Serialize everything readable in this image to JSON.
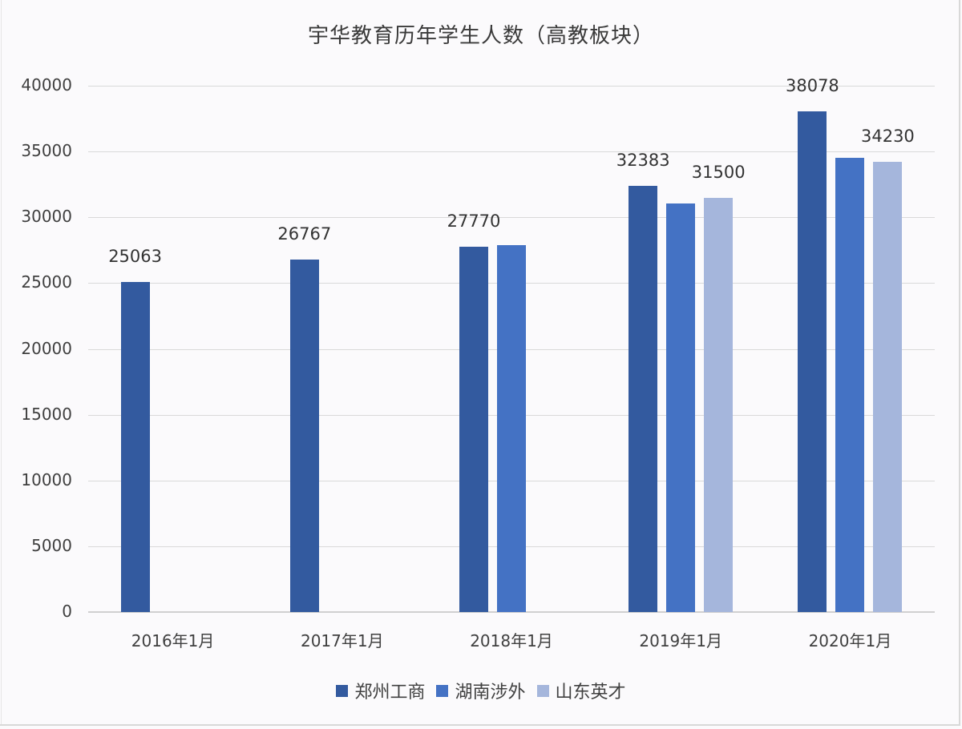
{
  "chart_data": {
    "type": "bar",
    "title": "宇华教育历年学生人数（高教板块）",
    "xlabel": "",
    "ylabel": "",
    "ylim": [
      0,
      40000
    ],
    "yticks": [
      0,
      5000,
      10000,
      15000,
      20000,
      25000,
      30000,
      35000,
      40000
    ],
    "grid": true,
    "legend_position": "bottom",
    "categories": [
      "2016年1月",
      "2017年1月",
      "2018年1月",
      "2019年1月",
      "2020年1月"
    ],
    "series": [
      {
        "name": "郑州工商",
        "color": "#335a9f",
        "values": [
          25063,
          26767,
          27770,
          32383,
          38078
        ],
        "labels": [
          "25063",
          "26767",
          "27770",
          "32383",
          "38078"
        ]
      },
      {
        "name": "湖南涉外",
        "color": "#4472c4",
        "values": [
          null,
          null,
          27900,
          31050,
          34520
        ],
        "labels": [
          null,
          null,
          null,
          null,
          null
        ]
      },
      {
        "name": "山东英才",
        "color": "#a5b6dc",
        "values": [
          null,
          null,
          null,
          31500,
          34230
        ],
        "labels": [
          null,
          null,
          null,
          "31500",
          "34230"
        ]
      }
    ]
  },
  "title": "宇华教育历年学生人数（高教板块）",
  "yticks": [
    "0",
    "5000",
    "10000",
    "15000",
    "20000",
    "25000",
    "30000",
    "35000",
    "40000"
  ],
  "xticks": [
    "2016年1月",
    "2017年1月",
    "2018年1月",
    "2019年1月",
    "2020年1月"
  ],
  "legend": [
    {
      "label": "郑州工商",
      "color": "#335a9f"
    },
    {
      "label": "湖南涉外",
      "color": "#4472c4"
    },
    {
      "label": "山东英才",
      "color": "#a5b6dc"
    }
  ]
}
